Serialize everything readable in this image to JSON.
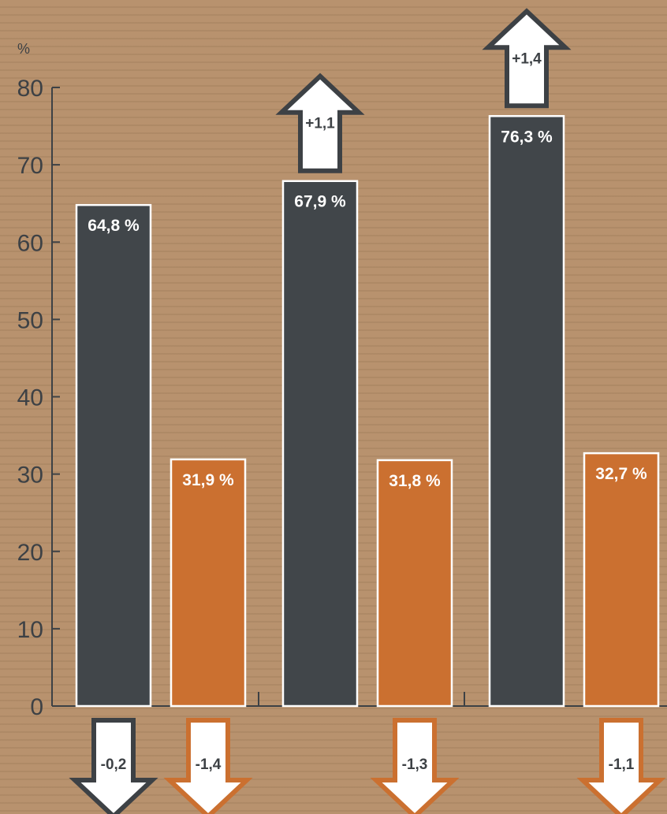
{
  "chart_data": {
    "type": "bar",
    "ylabel": "%",
    "ylim": [
      0,
      80
    ],
    "yticks": [
      "0",
      "10",
      "20",
      "30",
      "40",
      "50",
      "60",
      "70",
      "80"
    ],
    "grid": false,
    "colors": {
      "dark": "#41464a",
      "orange": "#cb7030",
      "background": "#b8926e",
      "axis": "#3d4145"
    },
    "groups": [
      {
        "bars": [
          {
            "color": "dark",
            "value": 64.8,
            "label": "64,8 %",
            "change": "-0,2",
            "direction": "down"
          },
          {
            "color": "orange",
            "value": 31.9,
            "label": "31,9 %",
            "change": "-1,4",
            "direction": "down"
          }
        ]
      },
      {
        "bars": [
          {
            "color": "dark",
            "value": 67.9,
            "label": "67,9 %",
            "change": "+1,1",
            "direction": "up"
          },
          {
            "color": "orange",
            "value": 31.8,
            "label": "31,8 %",
            "change": "-1,3",
            "direction": "down"
          }
        ]
      },
      {
        "bars": [
          {
            "color": "dark",
            "value": 76.3,
            "label": "76,3 %",
            "change": "+1,4",
            "direction": "up"
          },
          {
            "color": "orange",
            "value": 32.7,
            "label": "32,7 %",
            "change": "-1,1",
            "direction": "down"
          }
        ]
      }
    ]
  }
}
